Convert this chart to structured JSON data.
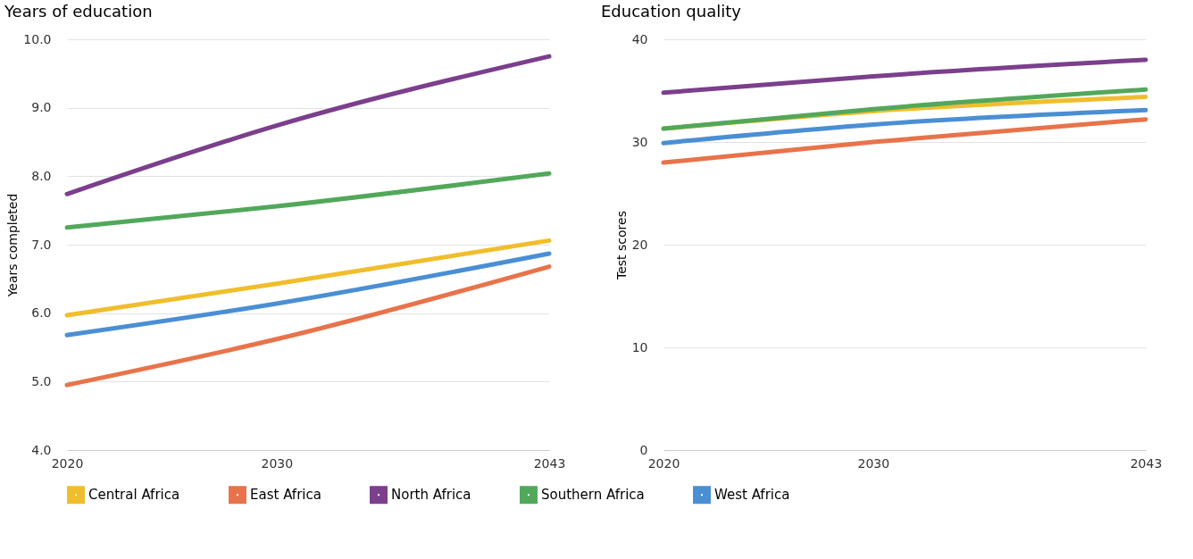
{
  "chart_data": [
    {
      "type": "line",
      "title": "Years of education",
      "ylabel": "Years completed",
      "x": [
        2020,
        2030,
        2043
      ],
      "xlim": [
        2020,
        2043
      ],
      "xticks": [
        2020,
        2030,
        2043
      ],
      "ylim": [
        4,
        10
      ],
      "yticks": [
        {
          "value": 4,
          "label": "4.0"
        },
        {
          "value": 5,
          "label": "5.0"
        },
        {
          "value": 6,
          "label": "6.0"
        },
        {
          "value": 7,
          "label": "7.0"
        },
        {
          "value": 8,
          "label": "8.0"
        },
        {
          "value": 9,
          "label": "9.0"
        },
        {
          "value": 10,
          "label": "10.0"
        }
      ],
      "grid": "y",
      "legend": "bottom",
      "line_style": "solid",
      "marker": "none",
      "series": [
        {
          "name": "Central Africa",
          "color": "#f0be2c",
          "values": [
            5.97,
            6.43,
            7.06
          ]
        },
        {
          "name": "East Africa",
          "color": "#e8734a",
          "values": [
            4.95,
            5.62,
            6.68
          ]
        },
        {
          "name": "North Africa",
          "color": "#7b3f8c",
          "values": [
            7.74,
            8.74,
            9.75
          ]
        },
        {
          "name": "Southern Africa",
          "color": "#52a85a",
          "values": [
            7.25,
            7.56,
            8.04
          ]
        },
        {
          "name": "West Africa",
          "color": "#4a8fd4",
          "values": [
            5.68,
            6.14,
            6.87
          ]
        }
      ]
    },
    {
      "type": "line",
      "title": "Education quality",
      "ylabel": "Test scores",
      "x": [
        2020,
        2030,
        2043
      ],
      "xlim": [
        2020,
        2043
      ],
      "xticks": [
        2020,
        2030,
        2043
      ],
      "ylim": [
        0,
        40
      ],
      "yticks": [
        0,
        10,
        20,
        30,
        40
      ],
      "grid": "y",
      "line_style": "solid",
      "marker": "none",
      "series": [
        {
          "color": "#f0be2c",
          "values": [
            31.3,
            33.0,
            34.4
          ]
        },
        {
          "color": "#e8734a",
          "values": [
            28.0,
            30.0,
            32.2
          ]
        },
        {
          "color": "#7b3f8c",
          "values": [
            34.8,
            36.4,
            38.0
          ]
        },
        {
          "color": "#52a85a",
          "values": [
            31.3,
            33.2,
            35.1
          ]
        },
        {
          "color": "#4a8fd4",
          "values": [
            29.9,
            31.7,
            33.1
          ]
        }
      ]
    }
  ]
}
